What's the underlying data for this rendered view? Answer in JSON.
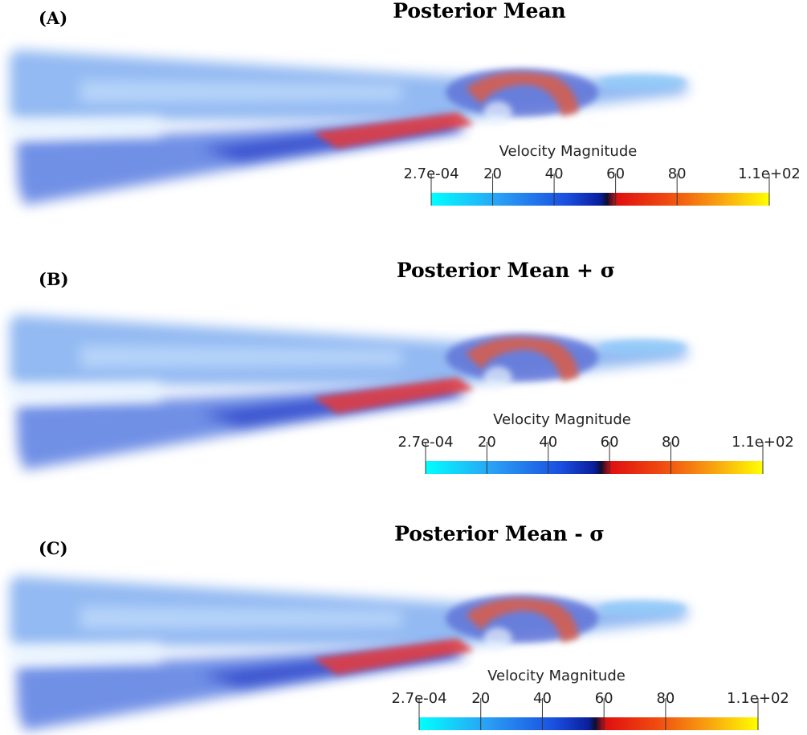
{
  "panels": [
    {
      "label": "(A)",
      "title": "Posterior Mean",
      "colorbar": {
        "title": "Velocity Magnitude",
        "range": [
          0.00027,
          110
        ],
        "ticks": [
          {
            "value": 0.00027,
            "label": "2.7e-04"
          },
          20,
          40,
          60,
          80,
          {
            "value": 110,
            "label": "1.1e+02"
          }
        ]
      }
    },
    {
      "label": "(B)",
      "title": "Posterior Mean + σ",
      "colorbar": {
        "title": "Velocity Magnitude",
        "range": [
          0.00027,
          110
        ],
        "ticks": [
          {
            "value": 0.00027,
            "label": "2.7e-04"
          },
          20,
          40,
          60,
          80,
          {
            "value": 110,
            "label": "1.1e+02"
          }
        ]
      }
    },
    {
      "label": "(C)",
      "title": "Posterior Mean - σ",
      "colorbar": {
        "title": "Velocity Magnitude",
        "range": [
          0.00027,
          110
        ],
        "ticks": [
          {
            "value": 0.00027,
            "label": "2.7e-04"
          },
          20,
          40,
          60,
          80,
          {
            "value": 110,
            "label": "1.1e+02"
          }
        ]
      }
    }
  ]
}
